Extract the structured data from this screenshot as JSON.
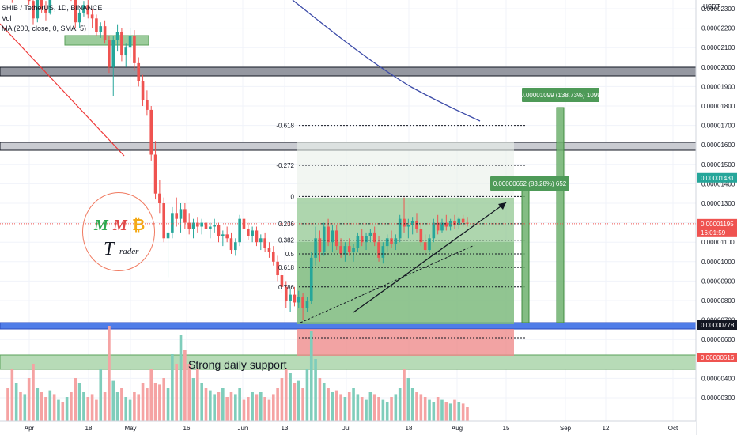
{
  "header": {
    "symbol_line": "SHIB / TetherUS, 1D, BINANCE",
    "vol_line": "Vol",
    "ma_line": "MA (200, close, 0, SMA, 5)"
  },
  "logo": {
    "m1": "M",
    "m2": "M",
    "btc": "₿",
    "t": "T",
    "trader": "rader"
  },
  "chart_data": {
    "type": "candlestick",
    "unit": "USDT",
    "y_ticks": [
      "0.00002300",
      "0.00002200",
      "0.00002100",
      "0.00002000",
      "0.00001900",
      "0.00001800",
      "0.00001700",
      "0.00001600",
      "0.00001500",
      "0.00001400",
      "0.00001300",
      "0.00001200",
      "0.00001100",
      "0.00001000",
      "0.00000900",
      "0.00000800",
      "0.00000700",
      "0.00000600",
      "0.00000500",
      "0.00000400",
      "0.00000300"
    ],
    "x_ticks": [
      "Apr",
      "18",
      "May",
      "16",
      "Jun",
      "13",
      "Jul",
      "18",
      "Aug",
      "15",
      "Sep",
      "12",
      "Oct"
    ],
    "price_tags": [
      {
        "value": "0.00001431",
        "color": "#26a69a"
      },
      {
        "value": "0.00001195",
        "color": "#ef5350"
      },
      {
        "value": "16:01:59",
        "color": "#ef5350"
      },
      {
        "value": "0.00000778",
        "color": "#131722"
      },
      {
        "value": "0.00000616",
        "color": "#ef5350"
      }
    ],
    "fib_levels": [
      {
        "ratio": "-0.618",
        "price": 1.7
      },
      {
        "ratio": "-0.272",
        "price": 1.495
      },
      {
        "ratio": "0",
        "price": 1.335
      },
      {
        "ratio": "0.236",
        "price": 1.195
      },
      {
        "ratio": "0.382",
        "price": 1.11
      },
      {
        "ratio": "0.5",
        "price": 1.04
      },
      {
        "ratio": "0.618",
        "price": 0.97
      },
      {
        "ratio": "0.786",
        "price": 0.87
      }
    ],
    "measure_labels": [
      {
        "text": "0.00000652 (83.28%) 652"
      },
      {
        "text": "0.00001099 (138.73%) 1099"
      }
    ],
    "annotation": "Strong daily support",
    "candles": [
      [
        2.42,
        2.52,
        2.35,
        2.4
      ],
      [
        2.4,
        2.45,
        2.33,
        2.37
      ],
      [
        2.37,
        2.46,
        2.36,
        2.44
      ],
      [
        2.44,
        2.48,
        2.38,
        2.4
      ],
      [
        2.4,
        2.47,
        2.39,
        2.45
      ],
      [
        2.45,
        2.47,
        2.32,
        2.34
      ],
      [
        2.34,
        2.36,
        2.22,
        2.25
      ],
      [
        2.25,
        2.38,
        2.23,
        2.36
      ],
      [
        2.36,
        2.4,
        2.28,
        2.3
      ],
      [
        2.3,
        2.34,
        2.24,
        2.28
      ],
      [
        2.28,
        2.44,
        2.27,
        2.42
      ],
      [
        2.42,
        2.48,
        2.38,
        2.4
      ],
      [
        2.4,
        2.45,
        2.36,
        2.43
      ],
      [
        2.43,
        2.46,
        2.39,
        2.41
      ],
      [
        2.41,
        2.44,
        2.37,
        2.42
      ],
      [
        2.42,
        2.46,
        2.34,
        2.36
      ],
      [
        2.36,
        2.38,
        2.2,
        2.23
      ],
      [
        2.23,
        2.3,
        2.2,
        2.28
      ],
      [
        2.28,
        2.34,
        2.26,
        2.32
      ],
      [
        2.32,
        2.35,
        2.25,
        2.27
      ],
      [
        2.27,
        2.3,
        2.2,
        2.25
      ],
      [
        2.25,
        2.27,
        2.16,
        2.18
      ],
      [
        2.18,
        2.23,
        2.15,
        2.21
      ],
      [
        2.21,
        2.24,
        2.12,
        2.14
      ],
      [
        2.14,
        2.16,
        1.97,
        2.0
      ],
      [
        2.0,
        2.16,
        1.85,
        2.14
      ],
      [
        2.14,
        2.22,
        2.08,
        2.18
      ],
      [
        2.18,
        2.2,
        2.03,
        2.06
      ],
      [
        2.06,
        2.12,
        2.0,
        2.1
      ],
      [
        2.1,
        2.2,
        2.05,
        2.16
      ],
      [
        2.16,
        2.19,
        1.98,
        2.02
      ],
      [
        2.02,
        2.05,
        1.9,
        1.93
      ],
      [
        1.93,
        1.96,
        1.8,
        1.83
      ],
      [
        1.83,
        1.88,
        1.75,
        1.78
      ],
      [
        1.78,
        1.8,
        1.52,
        1.55
      ],
      [
        1.55,
        1.62,
        1.32,
        1.35
      ],
      [
        1.35,
        1.42,
        1.25,
        1.3
      ],
      [
        1.3,
        1.33,
        1.1,
        1.12
      ],
      [
        1.12,
        1.18,
        0.92,
        1.15
      ],
      [
        1.15,
        1.28,
        1.12,
        1.25
      ],
      [
        1.25,
        1.33,
        1.18,
        1.22
      ],
      [
        1.22,
        1.3,
        1.15,
        1.27
      ],
      [
        1.27,
        1.3,
        1.17,
        1.2
      ],
      [
        1.2,
        1.25,
        1.14,
        1.17
      ],
      [
        1.17,
        1.22,
        1.12,
        1.2
      ],
      [
        1.2,
        1.23,
        1.15,
        1.18
      ],
      [
        1.18,
        1.22,
        1.14,
        1.2
      ],
      [
        1.2,
        1.22,
        1.15,
        1.17
      ],
      [
        1.17,
        1.2,
        1.12,
        1.18
      ],
      [
        1.18,
        1.22,
        1.15,
        1.19
      ],
      [
        1.19,
        1.2,
        1.1,
        1.13
      ],
      [
        1.13,
        1.16,
        1.08,
        1.14
      ],
      [
        1.14,
        1.18,
        1.1,
        1.12
      ],
      [
        1.12,
        1.15,
        1.04,
        1.06
      ],
      [
        1.06,
        1.12,
        1.03,
        1.1
      ],
      [
        1.1,
        1.24,
        1.08,
        1.22
      ],
      [
        1.22,
        1.26,
        1.15,
        1.17
      ],
      [
        1.17,
        1.2,
        1.11,
        1.13
      ],
      [
        1.13,
        1.18,
        1.1,
        1.16
      ],
      [
        1.16,
        1.18,
        1.08,
        1.1
      ],
      [
        1.1,
        1.14,
        1.06,
        1.12
      ],
      [
        1.12,
        1.15,
        1.05,
        1.07
      ],
      [
        1.07,
        1.1,
        1.02,
        1.05
      ],
      [
        1.05,
        1.08,
        0.98,
        1.0
      ],
      [
        1.0,
        1.03,
        0.9,
        0.93
      ],
      [
        0.93,
        0.96,
        0.84,
        0.87
      ],
      [
        0.87,
        0.9,
        0.76,
        0.8
      ],
      [
        0.8,
        0.86,
        0.74,
        0.83
      ],
      [
        0.83,
        0.87,
        0.77,
        0.79
      ],
      [
        0.79,
        0.85,
        0.76,
        0.82
      ],
      [
        0.82,
        0.84,
        0.7,
        0.76
      ],
      [
        0.76,
        0.82,
        0.74,
        0.8
      ],
      [
        0.8,
        1.05,
        0.78,
        1.02
      ],
      [
        1.02,
        1.18,
        0.98,
        1.12
      ],
      [
        1.12,
        1.16,
        1.0,
        1.05
      ],
      [
        1.05,
        1.2,
        1.03,
        1.18
      ],
      [
        1.18,
        1.22,
        1.08,
        1.1
      ],
      [
        1.1,
        1.19,
        1.05,
        1.16
      ],
      [
        1.16,
        1.19,
        1.06,
        1.08
      ],
      [
        1.08,
        1.12,
        1.02,
        1.04
      ],
      [
        1.04,
        1.1,
        1.0,
        1.08
      ],
      [
        1.08,
        1.12,
        1.03,
        1.05
      ],
      [
        1.05,
        1.09,
        1.0,
        1.07
      ],
      [
        1.07,
        1.15,
        1.05,
        1.13
      ],
      [
        1.13,
        1.17,
        1.08,
        1.1
      ],
      [
        1.1,
        1.15,
        1.06,
        1.13
      ],
      [
        1.13,
        1.17,
        1.1,
        1.15
      ],
      [
        1.15,
        1.18,
        1.08,
        1.1
      ],
      [
        1.1,
        1.13,
        1.0,
        1.02
      ],
      [
        1.02,
        1.1,
        0.99,
        1.08
      ],
      [
        1.08,
        1.14,
        1.05,
        1.12
      ],
      [
        1.12,
        1.16,
        1.07,
        1.09
      ],
      [
        1.09,
        1.14,
        1.06,
        1.12
      ],
      [
        1.12,
        1.24,
        1.1,
        1.22
      ],
      [
        1.22,
        1.33,
        1.15,
        1.18
      ],
      [
        1.18,
        1.22,
        1.12,
        1.19
      ],
      [
        1.19,
        1.23,
        1.14,
        1.21
      ],
      [
        1.21,
        1.25,
        1.15,
        1.17
      ],
      [
        1.17,
        1.2,
        1.08,
        1.1
      ],
      [
        1.1,
        1.14,
        1.04,
        1.06
      ],
      [
        1.06,
        1.14,
        1.05,
        1.12
      ],
      [
        1.12,
        1.22,
        1.1,
        1.2
      ],
      [
        1.2,
        1.24,
        1.14,
        1.16
      ],
      [
        1.16,
        1.22,
        1.15,
        1.2
      ],
      [
        1.2,
        1.24,
        1.16,
        1.18
      ],
      [
        1.18,
        1.22,
        1.16,
        1.21
      ],
      [
        1.21,
        1.24,
        1.17,
        1.19
      ],
      [
        1.19,
        1.23,
        1.17,
        1.22
      ],
      [
        1.22,
        1.24,
        1.18,
        1.2
      ],
      [
        1.2,
        1.23,
        1.18,
        1.195
      ]
    ],
    "volumes": [
      0.35,
      0.55,
      0.4,
      0.3,
      0.28,
      0.45,
      0.6,
      0.35,
      0.3,
      0.25,
      0.32,
      0.28,
      0.22,
      0.2,
      0.25,
      0.3,
      0.45,
      0.4,
      0.3,
      0.25,
      0.28,
      0.22,
      0.55,
      0.3,
      1.0,
      0.42,
      0.3,
      0.35,
      0.25,
      0.22,
      0.3,
      0.28,
      0.4,
      0.35,
      0.55,
      0.4,
      0.38,
      0.45,
      0.35,
      0.7,
      0.6,
      0.9,
      0.75,
      0.6,
      0.45,
      0.55,
      0.4,
      0.35,
      0.32,
      0.28,
      0.3,
      0.35,
      0.25,
      0.3,
      0.28,
      0.35,
      0.22,
      0.25,
      0.3,
      0.28,
      0.3,
      0.25,
      0.22,
      0.28,
      0.35,
      0.45,
      0.55,
      0.5,
      0.4,
      0.42,
      0.35,
      0.55,
      0.95,
      0.65,
      0.45,
      0.4,
      0.35,
      0.3,
      0.32,
      0.28,
      0.25,
      0.3,
      0.35,
      0.28,
      0.25,
      0.22,
      0.3,
      0.28,
      0.25,
      0.22,
      0.2,
      0.25,
      0.28,
      0.35,
      0.55,
      0.45,
      0.35,
      0.3,
      0.28,
      0.25,
      0.22,
      0.2,
      0.25,
      0.22,
      0.2,
      0.18,
      0.22,
      0.2,
      0.18,
      0.15
    ]
  }
}
